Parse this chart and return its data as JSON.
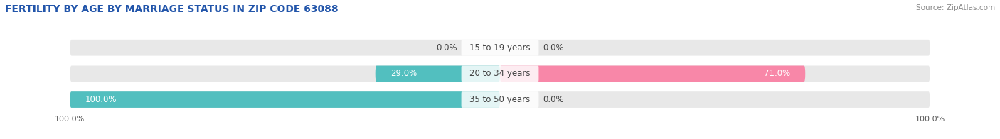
{
  "title": "FERTILITY BY AGE BY MARRIAGE STATUS IN ZIP CODE 63088",
  "source": "Source: ZipAtlas.com",
  "categories": [
    "15 to 19 years",
    "20 to 34 years",
    "35 to 50 years"
  ],
  "married": [
    0.0,
    29.0,
    100.0
  ],
  "unmarried": [
    0.0,
    71.0,
    0.0
  ],
  "married_color": "#52bfbf",
  "unmarried_color": "#f887a8",
  "bar_bg_color": "#e8e8e8",
  "bar_gap_color": "#ffffff",
  "xlim": 100.0,
  "title_fontsize": 10,
  "source_fontsize": 7.5,
  "value_fontsize": 8.5,
  "category_fontsize": 8.5,
  "legend_fontsize": 9,
  "axis_label_fontsize": 8,
  "bg_color": "#ffffff",
  "bar_height": 0.62
}
